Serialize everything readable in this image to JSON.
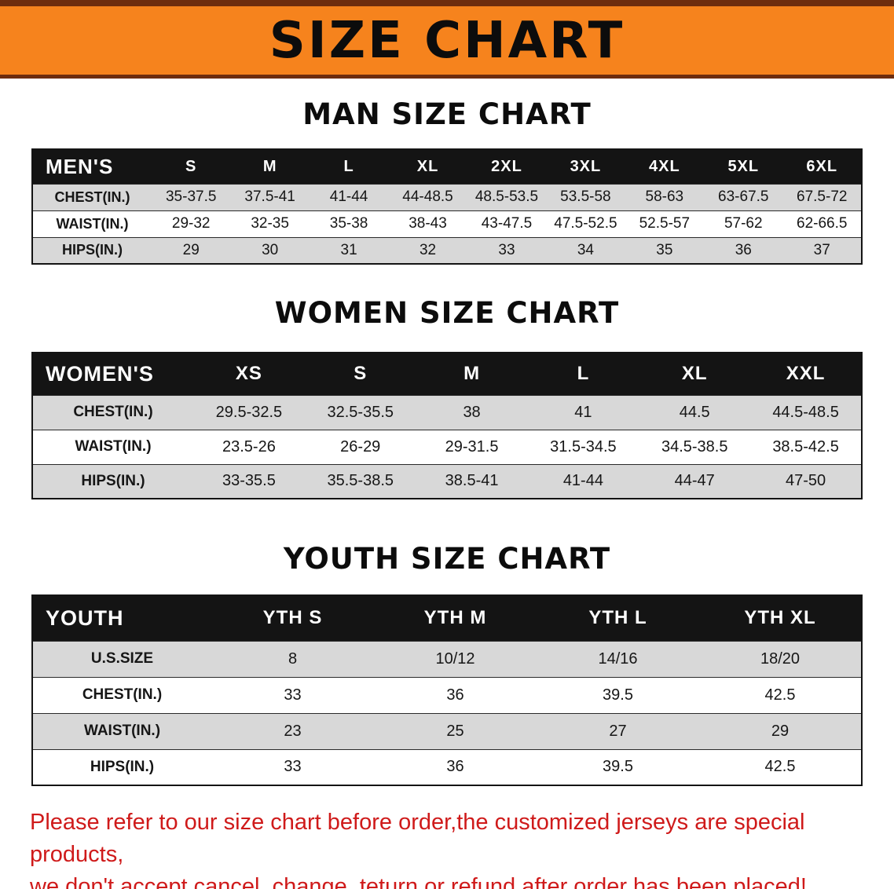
{
  "colors": {
    "banner_bg": "#F6831D",
    "banner_border": "#6e2d0e",
    "table_header_bg": "#141414",
    "row_shade": "#d8d8d8",
    "disclaimer_text": "#cf1a1a"
  },
  "banner": {
    "title": "SIZE CHART"
  },
  "men": {
    "heading": "MAN SIZE CHART",
    "header": [
      "MEN'S",
      "S",
      "M",
      "L",
      "XL",
      "2XL",
      "3XL",
      "4XL",
      "5XL",
      "6XL"
    ],
    "rows": [
      {
        "label": "CHEST(IN.)",
        "values": [
          "35-37.5",
          "37.5-41",
          "41-44",
          "44-48.5",
          "48.5-53.5",
          "53.5-58",
          "58-63",
          "63-67.5",
          "67.5-72"
        ]
      },
      {
        "label": "WAIST(IN.)",
        "values": [
          "29-32",
          "32-35",
          "35-38",
          "38-43",
          "43-47.5",
          "47.5-52.5",
          "52.5-57",
          "57-62",
          "62-66.5"
        ]
      },
      {
        "label": "HIPS(IN.)",
        "values": [
          "29",
          "30",
          "31",
          "32",
          "33",
          "34",
          "35",
          "36",
          "37"
        ]
      }
    ]
  },
  "women": {
    "heading": "WOMEN SIZE CHART",
    "header": [
      "WOMEN'S",
      "XS",
      "S",
      "M",
      "L",
      "XL",
      "XXL"
    ],
    "rows": [
      {
        "label": "CHEST(IN.)",
        "values": [
          "29.5-32.5",
          "32.5-35.5",
          "38",
          "41",
          "44.5",
          "44.5-48.5"
        ]
      },
      {
        "label": "WAIST(IN.)",
        "values": [
          "23.5-26",
          "26-29",
          "29-31.5",
          "31.5-34.5",
          "34.5-38.5",
          "38.5-42.5"
        ]
      },
      {
        "label": "HIPS(IN.)",
        "values": [
          "33-35.5",
          "35.5-38.5",
          "38.5-41",
          "41-44",
          "44-47",
          "47-50"
        ]
      }
    ]
  },
  "youth": {
    "heading": "YOUTH SIZE CHART",
    "header": [
      "YOUTH",
      "YTH S",
      "YTH M",
      "YTH L",
      "YTH XL"
    ],
    "rows": [
      {
        "label": "U.S.SIZE",
        "values": [
          "8",
          "10/12",
          "14/16",
          "18/20"
        ]
      },
      {
        "label": "CHEST(IN.)",
        "values": [
          "33",
          "36",
          "39.5",
          "42.5"
        ]
      },
      {
        "label": "WAIST(IN.)",
        "values": [
          "23",
          "25",
          "27",
          "29"
        ]
      },
      {
        "label": "HIPS(IN.)",
        "values": [
          "33",
          "36",
          "39.5",
          "42.5"
        ]
      }
    ]
  },
  "disclaimer": {
    "line1": "Please refer to our size chart before order,the customized jerseys are special products,",
    "line2": "we don't accept cancel, change, teturn or refund after order has been placed!"
  }
}
